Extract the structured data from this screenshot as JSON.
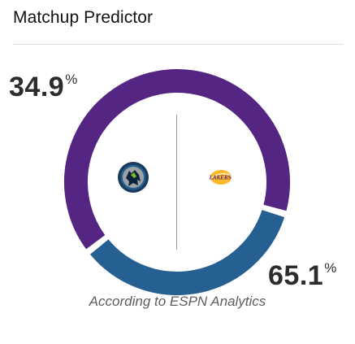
{
  "widget": {
    "title": "Matchup Predictor",
    "footnote": "According to ESPN Analytics"
  },
  "teams": {
    "away": {
      "logo_icon": "timberwolves-logo-icon",
      "win_probability": 34.9,
      "win_probability_label": "34.9",
      "percent_sign": "%",
      "color": "#266092"
    },
    "home": {
      "logo_icon": "lakers-logo-icon",
      "logo_text": "LAKERS",
      "win_probability": 65.1,
      "win_probability_label": "65.1",
      "percent_sign": "%",
      "color": "#552583"
    }
  }
}
